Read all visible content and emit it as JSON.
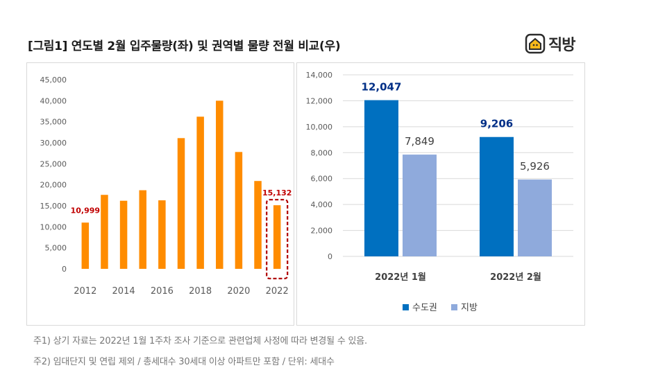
{
  "title": "[그림1] 연도별 2월 입주물량(좌) 및 권역별 물량 전월 비교(우)",
  "logo": {
    "text": "직방",
    "icon": "house-icon"
  },
  "notes": [
    "주1) 상기 자료는 2022년 1월 1주차 조사 기준으로 관련업체 사정에 따라 변경될 수 있음.",
    "주2) 임대단지 및 연립 제외 / 총세대수 30세대 이상 아파트만 포함 / 단위: 세대수"
  ],
  "colors": {
    "orange": "#ff8c00",
    "dark_blue": "#0070c0",
    "light_blue": "#8faadc",
    "highlight": "#c00000",
    "grid": "#d9d9d9"
  },
  "chart_data": [
    {
      "type": "bar",
      "categories": [
        "2012",
        "2013",
        "2014",
        "2015",
        "2016",
        "2017",
        "2018",
        "2019",
        "2020",
        "2021",
        "2022"
      ],
      "x_tick_labels": [
        "2012",
        "2014",
        "2016",
        "2018",
        "2020",
        "2022"
      ],
      "values": [
        11000,
        17600,
        16200,
        18700,
        16300,
        31100,
        36200,
        40000,
        27800,
        20900,
        15132
      ],
      "data_labels": [
        {
          "category": "2012",
          "text": "10,999"
        },
        {
          "category": "2022",
          "text": "15,132"
        }
      ],
      "highlight_category": "2022",
      "ylim": [
        0,
        45000
      ],
      "y_ticks": [
        "0",
        "5,000",
        "10,000",
        "15,000",
        "20,000",
        "25,000",
        "30,000",
        "35,000",
        "40,000",
        "45,000"
      ],
      "grid": false,
      "legend": "none"
    },
    {
      "type": "bar",
      "categories": [
        "2022년 1월",
        "2022년 2월"
      ],
      "series": [
        {
          "name": "수도권",
          "values": [
            12047,
            9206
          ],
          "labels": [
            "12,047",
            "9,206"
          ]
        },
        {
          "name": "지방",
          "values": [
            7849,
            5926
          ],
          "labels": [
            "7,849",
            "5,926"
          ]
        }
      ],
      "ylim": [
        0,
        14000
      ],
      "y_ticks": [
        "0",
        "2,000",
        "4,000",
        "6,000",
        "8,000",
        "10,000",
        "12,000",
        "14,000"
      ],
      "grid": true,
      "legend": "bottom"
    }
  ]
}
